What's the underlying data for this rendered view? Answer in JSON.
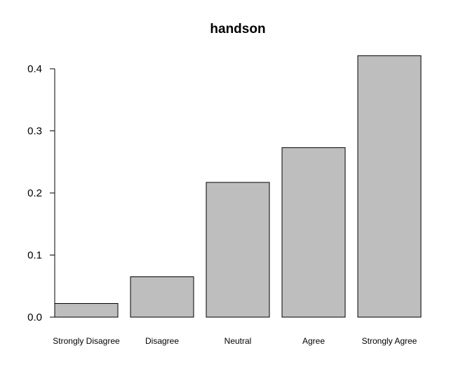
{
  "chart_data": {
    "type": "bar",
    "title": "handson",
    "categories": [
      "Strongly Disagree",
      "Disagree",
      "Neutral",
      "Agree",
      "Strongly Agree"
    ],
    "values": [
      0.022,
      0.065,
      0.217,
      0.273,
      0.421
    ],
    "yticks": [
      "0.0",
      "0.1",
      "0.2",
      "0.3",
      "0.4"
    ],
    "ylim": [
      0,
      0.4
    ],
    "xlabel": "",
    "ylabel": "",
    "grid": false,
    "bar_fill": "#bebebe",
    "bar_stroke": "#000000"
  }
}
